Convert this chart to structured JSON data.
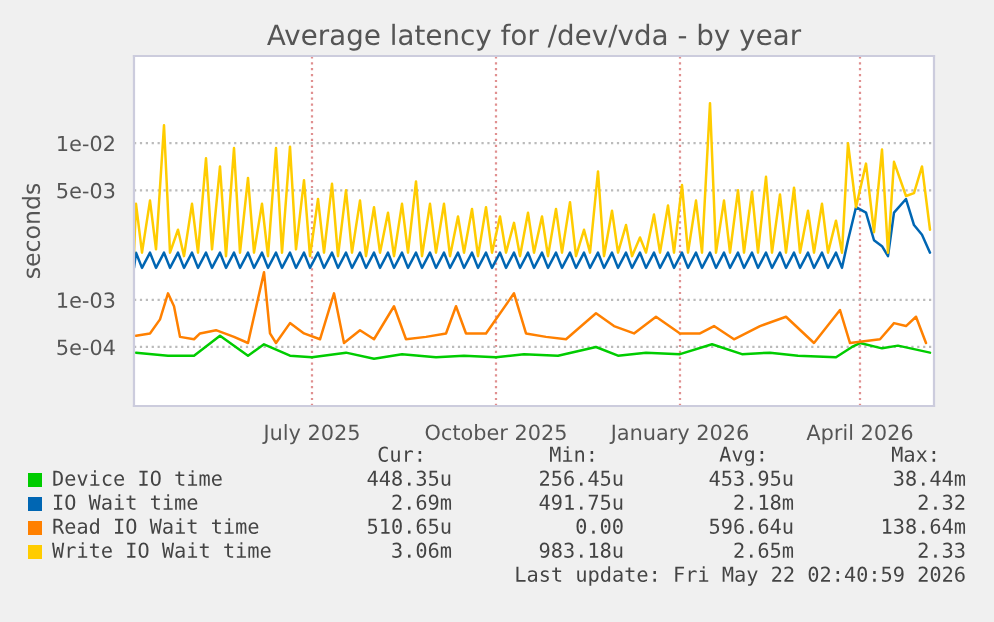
{
  "chart_data": {
    "type": "line",
    "title": "Average latency for /dev/vda - by year",
    "ylabel": "seconds",
    "log": "y",
    "grid": true,
    "legend": "bottom",
    "line_style": "solid",
    "marker": "none",
    "xlim": [
      "2025-04-03",
      "2026-05-08"
    ],
    "xticks": [
      {
        "value": "2025-07-01",
        "label": "July 2025"
      },
      {
        "value": "2025-10-01",
        "label": "October 2025"
      },
      {
        "value": "2026-01-01",
        "label": "January 2026"
      },
      {
        "value": "2026-04-01",
        "label": "April 2026"
      }
    ],
    "ylim": [
      0.00021,
      0.036
    ],
    "yticks": [
      {
        "value": 0.0005,
        "label": "5e-04"
      },
      {
        "value": 0.001,
        "label": "1e-03"
      },
      {
        "value": 0.005,
        "label": "5e-03"
      },
      {
        "value": 0.01,
        "label": "1e-02"
      }
    ],
    "series": [
      {
        "name": "Device IO time",
        "color": "#00cc00",
        "x": [
          "2025-04-04",
          "2025-04-20",
          "2025-05-03",
          "2025-05-16",
          "2025-05-30",
          "2025-06-07",
          "2025-06-20",
          "2025-07-01",
          "2025-07-18",
          "2025-08-01",
          "2025-08-15",
          "2025-09-01",
          "2025-09-15",
          "2025-10-01",
          "2025-10-15",
          "2025-11-01",
          "2025-11-20",
          "2025-12-01",
          "2025-12-15",
          "2026-01-01",
          "2026-01-17",
          "2026-02-01",
          "2026-02-15",
          "2026-03-01",
          "2026-03-20",
          "2026-03-28",
          "2026-04-01",
          "2026-04-12",
          "2026-04-20",
          "2026-05-06"
        ],
        "values": [
          0.00046,
          0.00044,
          0.00044,
          0.00059,
          0.00044,
          0.00052,
          0.00044,
          0.00043,
          0.00046,
          0.00042,
          0.00045,
          0.00043,
          0.00044,
          0.00043,
          0.00045,
          0.00044,
          0.0005,
          0.00044,
          0.00046,
          0.00045,
          0.00052,
          0.00045,
          0.00046,
          0.00044,
          0.00043,
          0.0005,
          0.00053,
          0.00049,
          0.00051,
          0.00046
        ]
      },
      {
        "name": "IO Wait time",
        "color": "#0066b3",
        "x": [
          "2025-04-03",
          "2025-04-04",
          "2025-04-07",
          "2025-04-11",
          "2025-04-14",
          "2025-04-18",
          "2025-04-21",
          "2025-04-25",
          "2025-04-28",
          "2025-05-02",
          "2025-05-05",
          "2025-05-09",
          "2025-05-12",
          "2025-05-16",
          "2025-05-19",
          "2025-05-23",
          "2025-05-26",
          "2025-05-30",
          "2025-06-02",
          "2025-06-06",
          "2025-06-09",
          "2025-06-13",
          "2025-06-16",
          "2025-06-20",
          "2025-06-23",
          "2025-06-27",
          "2025-06-30",
          "2025-07-04",
          "2025-07-07",
          "2025-07-11",
          "2025-07-14",
          "2025-07-18",
          "2025-07-21",
          "2025-07-25",
          "2025-07-28",
          "2025-08-01",
          "2025-08-04",
          "2025-08-08",
          "2025-08-11",
          "2025-08-15",
          "2025-08-18",
          "2025-08-22",
          "2025-08-25",
          "2025-08-29",
          "2025-09-01",
          "2025-09-05",
          "2025-09-08",
          "2025-09-12",
          "2025-09-15",
          "2025-09-19",
          "2025-09-22",
          "2025-09-26",
          "2025-09-29",
          "2025-10-03",
          "2025-10-06",
          "2025-10-10",
          "2025-10-13",
          "2025-10-17",
          "2025-10-20",
          "2025-10-24",
          "2025-10-27",
          "2025-10-31",
          "2025-11-03",
          "2025-11-07",
          "2025-11-10",
          "2025-11-14",
          "2025-11-17",
          "2025-11-21",
          "2025-11-24",
          "2025-11-28",
          "2025-12-01",
          "2025-12-05",
          "2025-12-08",
          "2025-12-12",
          "2025-12-15",
          "2025-12-19",
          "2025-12-22",
          "2025-12-26",
          "2025-12-29",
          "2026-01-02",
          "2026-01-05",
          "2026-01-09",
          "2026-01-12",
          "2026-01-16",
          "2026-01-19",
          "2026-01-23",
          "2026-01-26",
          "2026-01-30",
          "2026-02-02",
          "2026-02-06",
          "2026-02-09",
          "2026-02-13",
          "2026-02-16",
          "2026-02-20",
          "2026-02-23",
          "2026-02-27",
          "2026-03-02",
          "2026-03-06",
          "2026-03-09",
          "2026-03-13",
          "2026-03-16",
          "2026-03-20",
          "2026-03-23",
          "2026-03-26",
          "2026-03-30",
          "2026-04-04",
          "2026-04-08",
          "2026-04-12",
          "2026-04-15",
          "2026-04-18",
          "2026-04-24",
          "2026-04-28",
          "2026-05-02",
          "2026-05-06"
        ],
        "values": [
          0.0016,
          0.002,
          0.0016,
          0.002,
          0.0016,
          0.002,
          0.0016,
          0.002,
          0.0016,
          0.002,
          0.0016,
          0.002,
          0.0016,
          0.002,
          0.0016,
          0.002,
          0.0016,
          0.002,
          0.0016,
          0.002,
          0.0016,
          0.002,
          0.0016,
          0.002,
          0.0016,
          0.002,
          0.0016,
          0.002,
          0.0016,
          0.002,
          0.0016,
          0.002,
          0.0016,
          0.002,
          0.0016,
          0.002,
          0.0016,
          0.002,
          0.0016,
          0.002,
          0.0016,
          0.002,
          0.0016,
          0.002,
          0.0016,
          0.002,
          0.0016,
          0.002,
          0.0016,
          0.002,
          0.0016,
          0.002,
          0.0016,
          0.002,
          0.0016,
          0.002,
          0.0016,
          0.002,
          0.0016,
          0.002,
          0.0016,
          0.002,
          0.0016,
          0.002,
          0.0016,
          0.002,
          0.0016,
          0.002,
          0.0016,
          0.002,
          0.0016,
          0.002,
          0.0016,
          0.002,
          0.0016,
          0.002,
          0.0016,
          0.002,
          0.0016,
          0.002,
          0.0016,
          0.002,
          0.0016,
          0.002,
          0.0016,
          0.002,
          0.0016,
          0.002,
          0.0016,
          0.002,
          0.0016,
          0.002,
          0.0016,
          0.002,
          0.0016,
          0.002,
          0.0016,
          0.002,
          0.0016,
          0.002,
          0.0016,
          0.002,
          0.0016,
          0.0024,
          0.0039,
          0.0036,
          0.0024,
          0.0022,
          0.0019,
          0.0036,
          0.0044,
          0.003,
          0.0026,
          0.002
        ]
      },
      {
        "name": "Read IO Wait time",
        "color": "#ff8000",
        "x": [
          "2025-04-04",
          "2025-04-11",
          "2025-04-16",
          "2025-04-20",
          "2025-04-23",
          "2025-04-26",
          "2025-05-03",
          "2025-05-06",
          "2025-05-14",
          "2025-05-23",
          "2025-05-30",
          "2025-06-07",
          "2025-06-10",
          "2025-06-13",
          "2025-06-20",
          "2025-06-27",
          "2025-07-05",
          "2025-07-12",
          "2025-07-17",
          "2025-07-25",
          "2025-08-01",
          "2025-08-11",
          "2025-08-17",
          "2025-08-27",
          "2025-09-06",
          "2025-09-11",
          "2025-09-16",
          "2025-09-26",
          "2025-10-10",
          "2025-10-16",
          "2025-10-26",
          "2025-11-05",
          "2025-11-20",
          "2025-11-29",
          "2025-12-09",
          "2025-12-20",
          "2026-01-01",
          "2026-01-11",
          "2026-01-18",
          "2026-01-28",
          "2026-02-10",
          "2026-02-23",
          "2026-03-09",
          "2026-03-22",
          "2026-03-27",
          "2026-04-11",
          "2026-04-18",
          "2026-04-24",
          "2026-04-29",
          "2026-05-04"
        ],
        "values": [
          0.00059,
          0.00061,
          0.00075,
          0.0011,
          0.00091,
          0.00058,
          0.00056,
          0.00061,
          0.00064,
          0.00058,
          0.00053,
          0.0015,
          0.00061,
          0.00053,
          0.00071,
          0.00061,
          0.00056,
          0.0011,
          0.00053,
          0.00064,
          0.00056,
          0.00091,
          0.00056,
          0.00058,
          0.00061,
          0.00091,
          0.00061,
          0.00061,
          0.0011,
          0.00061,
          0.00058,
          0.00056,
          0.00082,
          0.00068,
          0.00061,
          0.00078,
          0.00061,
          0.00061,
          0.00068,
          0.00056,
          0.00068,
          0.00078,
          0.00053,
          0.00086,
          0.00053,
          0.00056,
          0.00071,
          0.00068,
          0.00078,
          0.00053
        ]
      },
      {
        "name": "Write IO Wait time",
        "color": "#ffcc00",
        "x": [
          "2025-04-03",
          "2025-04-04",
          "2025-04-07",
          "2025-04-11",
          "2025-04-14",
          "2025-04-18",
          "2025-04-21",
          "2025-04-25",
          "2025-04-28",
          "2025-05-02",
          "2025-05-05",
          "2025-05-09",
          "2025-05-12",
          "2025-05-16",
          "2025-05-19",
          "2025-05-23",
          "2025-05-26",
          "2025-05-30",
          "2025-06-02",
          "2025-06-06",
          "2025-06-09",
          "2025-06-13",
          "2025-06-16",
          "2025-06-20",
          "2025-06-23",
          "2025-06-27",
          "2025-06-30",
          "2025-07-04",
          "2025-07-07",
          "2025-07-11",
          "2025-07-14",
          "2025-07-18",
          "2025-07-21",
          "2025-07-25",
          "2025-07-28",
          "2025-08-01",
          "2025-08-04",
          "2025-08-08",
          "2025-08-11",
          "2025-08-15",
          "2025-08-18",
          "2025-08-22",
          "2025-08-25",
          "2025-08-29",
          "2025-09-01",
          "2025-09-05",
          "2025-09-08",
          "2025-09-12",
          "2025-09-15",
          "2025-09-19",
          "2025-09-22",
          "2025-09-26",
          "2025-09-29",
          "2025-10-03",
          "2025-10-06",
          "2025-10-10",
          "2025-10-13",
          "2025-10-17",
          "2025-10-20",
          "2025-10-24",
          "2025-10-27",
          "2025-10-31",
          "2025-11-03",
          "2025-11-07",
          "2025-11-10",
          "2025-11-14",
          "2025-11-17",
          "2025-11-21",
          "2025-11-24",
          "2025-11-28",
          "2025-12-01",
          "2025-12-05",
          "2025-12-08",
          "2025-12-12",
          "2025-12-15",
          "2025-12-19",
          "2025-12-22",
          "2025-12-26",
          "2025-12-29",
          "2026-01-02",
          "2026-01-05",
          "2026-01-09",
          "2026-01-12",
          "2026-01-16",
          "2026-01-19",
          "2026-01-23",
          "2026-01-26",
          "2026-01-30",
          "2026-02-02",
          "2026-02-06",
          "2026-02-09",
          "2026-02-13",
          "2026-02-16",
          "2026-02-20",
          "2026-02-23",
          "2026-02-27",
          "2026-03-02",
          "2026-03-06",
          "2026-03-09",
          "2026-03-13",
          "2026-03-16",
          "2026-03-20",
          "2026-03-23",
          "2026-03-26",
          "2026-03-30",
          "2026-04-04",
          "2026-04-08",
          "2026-04-12",
          "2026-04-15",
          "2026-04-18",
          "2026-04-24",
          "2026-04-28",
          "2026-05-02",
          "2026-05-06"
        ],
        "values": [
          0.002,
          0.0041,
          0.002,
          0.0043,
          0.0021,
          0.013,
          0.002,
          0.0028,
          0.0019,
          0.0041,
          0.002,
          0.008,
          0.0021,
          0.0071,
          0.0019,
          0.0093,
          0.002,
          0.006,
          0.002,
          0.0041,
          0.0019,
          0.0093,
          0.002,
          0.0095,
          0.0021,
          0.0058,
          0.0019,
          0.0044,
          0.002,
          0.0055,
          0.0019,
          0.005,
          0.002,
          0.0043,
          0.0019,
          0.0039,
          0.002,
          0.0036,
          0.0019,
          0.0041,
          0.002,
          0.0057,
          0.0019,
          0.0041,
          0.002,
          0.0041,
          0.0019,
          0.0034,
          0.002,
          0.0038,
          0.0019,
          0.0039,
          0.002,
          0.0034,
          0.002,
          0.0031,
          0.0019,
          0.0036,
          0.002,
          0.0034,
          0.0019,
          0.0038,
          0.002,
          0.0042,
          0.0019,
          0.0028,
          0.002,
          0.0066,
          0.0019,
          0.0037,
          0.002,
          0.003,
          0.0019,
          0.0025,
          0.002,
          0.0035,
          0.002,
          0.004,
          0.002,
          0.0054,
          0.002,
          0.0043,
          0.002,
          0.018,
          0.002,
          0.0043,
          0.002,
          0.005,
          0.002,
          0.0049,
          0.002,
          0.0061,
          0.002,
          0.0047,
          0.002,
          0.0052,
          0.002,
          0.0037,
          0.002,
          0.0041,
          0.002,
          0.0032,
          0.002,
          0.01,
          0.0039,
          0.0074,
          0.0027,
          0.0091,
          0.002,
          0.0076,
          0.0046,
          0.0048,
          0.0071,
          0.0028
        ]
      }
    ],
    "annotations": [
      "Cur:",
      "Min:",
      "Avg:",
      "Max:",
      "448.35u",
      "256.45u",
      "453.95u",
      "38.44m",
      "2.69m",
      "491.75u",
      "2.18m",
      "2.32",
      "510.65u",
      "0.00",
      "596.64u",
      "138.64m",
      "3.06m",
      "983.18u",
      "2.65m",
      "2.33",
      "Last update: Fri May 22 02:40:59 2026"
    ]
  }
}
